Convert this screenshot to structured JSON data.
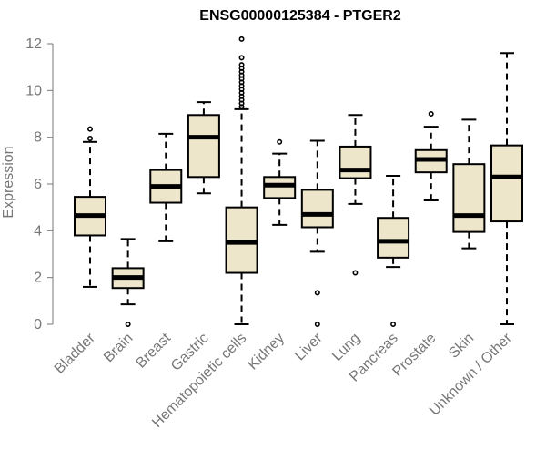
{
  "chart_data": {
    "type": "boxplot",
    "title": "ENSG00000125384 - PTGER2",
    "xlabel": "",
    "ylabel": "Expression",
    "ylim": [
      0,
      12
    ],
    "yticks": [
      0,
      2,
      4,
      6,
      8,
      10,
      12
    ],
    "grid": false,
    "colors": {
      "box_fill": "#ede6ca",
      "stroke": "#000000",
      "axis": "#777777"
    },
    "categories": [
      "Bladder",
      "Brain",
      "Breast",
      "Gastric",
      "Hematopoietic cells",
      "Kidney",
      "Liver",
      "Lung",
      "Pancreas",
      "Prostate",
      "Skin",
      "Unknown / Other"
    ],
    "boxes": [
      {
        "name": "Bladder",
        "whisker_low": 1.6,
        "q1": 3.8,
        "median": 4.65,
        "q3": 5.45,
        "whisker_high": 7.8,
        "outliers": [
          7.95,
          8.35
        ]
      },
      {
        "name": "Brain",
        "whisker_low": 0.85,
        "q1": 1.55,
        "median": 2.0,
        "q3": 2.4,
        "whisker_high": 3.65,
        "outliers": [
          0.0
        ]
      },
      {
        "name": "Breast",
        "whisker_low": 3.55,
        "q1": 5.2,
        "median": 5.9,
        "q3": 6.6,
        "whisker_high": 8.15,
        "outliers": []
      },
      {
        "name": "Gastric",
        "whisker_low": 5.6,
        "q1": 6.3,
        "median": 8.0,
        "q3": 8.95,
        "whisker_high": 9.5,
        "outliers": []
      },
      {
        "name": "Hematopoietic cells",
        "whisker_low": 0.0,
        "q1": 2.2,
        "median": 3.5,
        "q3": 5.0,
        "whisker_high": 9.2,
        "outliers": [
          9.3,
          9.45,
          9.6,
          9.75,
          9.9,
          10.05,
          10.2,
          10.35,
          10.5,
          10.65,
          10.8,
          10.95,
          11.1,
          11.4,
          12.2
        ]
      },
      {
        "name": "Kidney",
        "whisker_low": 4.25,
        "q1": 5.4,
        "median": 5.95,
        "q3": 6.3,
        "whisker_high": 7.3,
        "outliers": [
          7.8
        ]
      },
      {
        "name": "Liver",
        "whisker_low": 3.1,
        "q1": 4.15,
        "median": 4.7,
        "q3": 5.75,
        "whisker_high": 7.85,
        "outliers": [
          1.35,
          0.0
        ]
      },
      {
        "name": "Lung",
        "whisker_low": 5.15,
        "q1": 6.25,
        "median": 6.6,
        "q3": 7.6,
        "whisker_high": 8.95,
        "outliers": [
          2.2
        ]
      },
      {
        "name": "Pancreas",
        "whisker_low": 2.45,
        "q1": 2.85,
        "median": 3.55,
        "q3": 4.55,
        "whisker_high": 6.35,
        "outliers": [
          0.0
        ]
      },
      {
        "name": "Prostate",
        "whisker_low": 5.3,
        "q1": 6.5,
        "median": 7.05,
        "q3": 7.45,
        "whisker_high": 8.45,
        "outliers": [
          9.0
        ]
      },
      {
        "name": "Skin",
        "whisker_low": 3.25,
        "q1": 3.95,
        "median": 4.65,
        "q3": 6.85,
        "whisker_high": 8.75,
        "outliers": []
      },
      {
        "name": "Unknown / Other",
        "whisker_low": 0.0,
        "q1": 4.4,
        "median": 6.3,
        "q3": 7.65,
        "whisker_high": 11.6,
        "outliers": []
      }
    ]
  }
}
